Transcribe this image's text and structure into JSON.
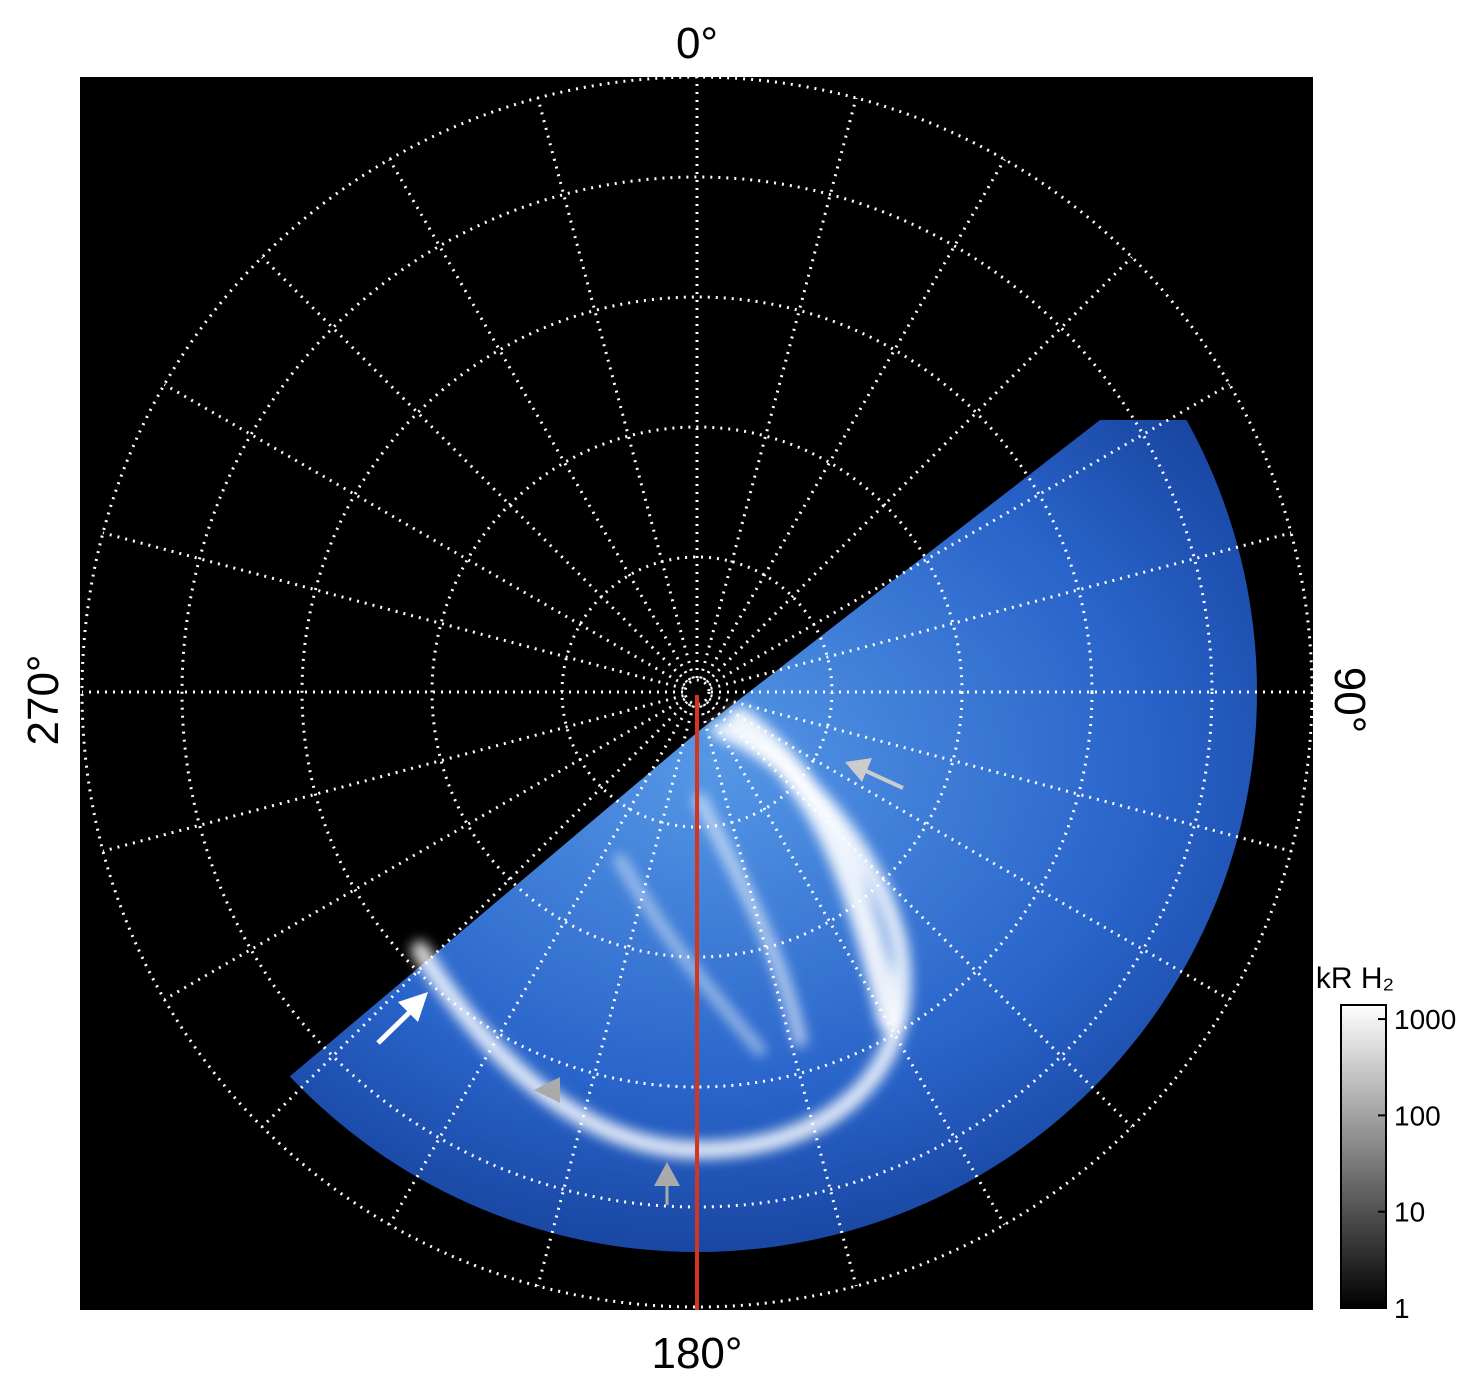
{
  "labels": {
    "top": "0°",
    "right": "90°",
    "bottom": "180°",
    "left": "270°"
  },
  "colorbar": {
    "title": "kR H₂",
    "scale": "log",
    "lim": [
      1,
      1400
    ],
    "ticks": [
      1,
      10,
      100,
      1000
    ]
  }
}
